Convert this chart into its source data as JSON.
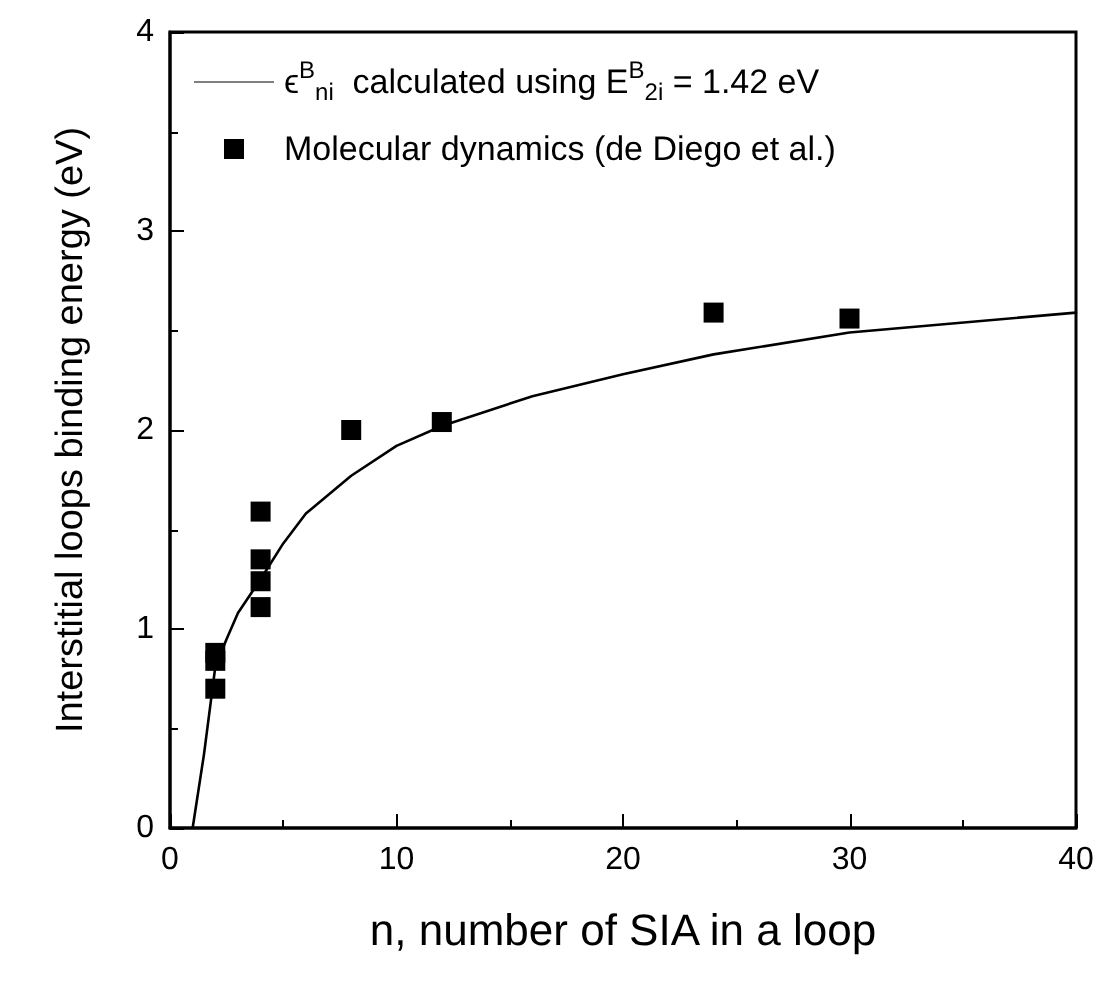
{
  "chart_data": {
    "type": "line",
    "xlabel": "n, number of SIA in a loop",
    "ylabel": "Interstitial loops binding energy (eV)",
    "xlim": [
      0,
      40
    ],
    "xticks": [
      0,
      10,
      20,
      30,
      40
    ],
    "ylim": [
      0,
      4
    ],
    "yticks": [
      0,
      1,
      2,
      3,
      4
    ],
    "grid": false,
    "legend": "top left",
    "series": [
      {
        "name": "ϵ$^{B}$$_{ni}$  calculated using E$^{B}$$_{2i}$ = 1.42 eV",
        "marker": "none",
        "line_style": "solid",
        "color": "#000000",
        "x": [
          1,
          1.5,
          2,
          2.5,
          3,
          4,
          5,
          6,
          8,
          10,
          12,
          16,
          20,
          24,
          30,
          40
        ],
        "values": [
          0,
          0.37,
          0.81,
          0.95,
          1.08,
          1.25,
          1.43,
          1.58,
          1.77,
          1.92,
          2.02,
          2.17,
          2.28,
          2.38,
          2.49,
          2.59
        ]
      },
      {
        "name": "Molecular dynamics (de Diego et al.)",
        "type": "scatter",
        "marker": "square",
        "color": "#000000",
        "x": [
          2,
          2,
          2,
          4,
          4,
          4,
          4,
          8,
          12,
          24,
          30
        ],
        "values": [
          0.7,
          0.84,
          0.88,
          1.11,
          1.24,
          1.35,
          1.59,
          2.0,
          2.04,
          2.59,
          2.56
        ]
      }
    ]
  }
}
